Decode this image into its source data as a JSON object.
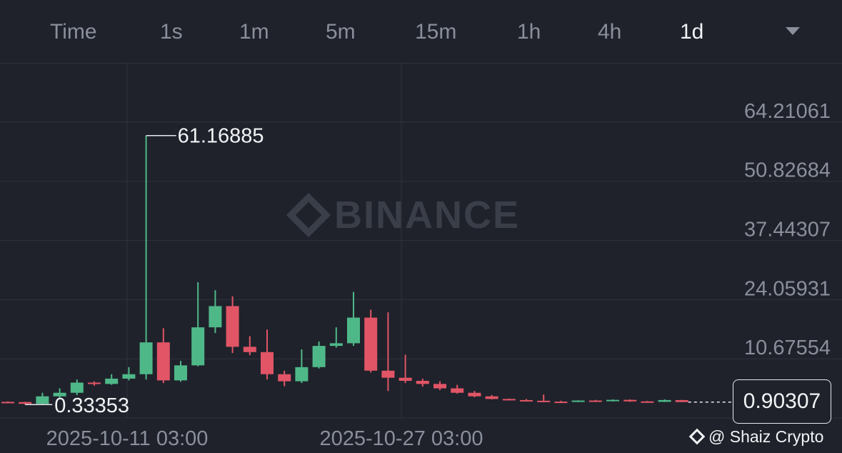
{
  "intervals": {
    "items": [
      {
        "label": "Time",
        "active": false
      },
      {
        "label": "1s",
        "active": false
      },
      {
        "label": "1m",
        "active": false
      },
      {
        "label": "5m",
        "active": false
      },
      {
        "label": "15m",
        "active": false
      },
      {
        "label": "1h",
        "active": false
      },
      {
        "label": "4h",
        "active": false
      },
      {
        "label": "1d",
        "active": true
      }
    ],
    "more_icon": "chevron-down-icon"
  },
  "watermark": "BINANCE",
  "current_price": "0.90307",
  "credit": "@ Shaiz Crypto",
  "colors": {
    "background": "#1f222b",
    "up": "#4fb889",
    "down": "#e15566",
    "grid": "#2e323c"
  },
  "chart_data": {
    "type": "candlestick",
    "y_ticks": [
      "64.21061",
      "50.82684",
      "37.44307",
      "24.05931",
      "10.67554"
    ],
    "x_ticks": [
      "2025-10-11 03:00",
      "2025-10-27 03:00"
    ],
    "ylim": [
      -2.7,
      77.6
    ],
    "max_label": "61.16885",
    "min_label": "0.33353",
    "candles": [
      {
        "o": 0.95,
        "h": 1.05,
        "l": 0.8,
        "c": 0.9
      },
      {
        "o": 0.9,
        "h": 0.95,
        "l": 0.33353,
        "c": 0.5
      },
      {
        "o": 0.5,
        "h": 3.0,
        "l": 0.4,
        "c": 2.2
      },
      {
        "o": 2.2,
        "h": 4.0,
        "l": 1.6,
        "c": 3.0
      },
      {
        "o": 3.0,
        "h": 6.0,
        "l": 2.5,
        "c": 5.3
      },
      {
        "o": 5.3,
        "h": 5.6,
        "l": 4.6,
        "c": 5.0
      },
      {
        "o": 5.0,
        "h": 7.2,
        "l": 4.8,
        "c": 6.2
      },
      {
        "o": 6.2,
        "h": 8.8,
        "l": 5.8,
        "c": 7.2
      },
      {
        "o": 7.2,
        "h": 61.16885,
        "l": 6.0,
        "c": 14.4
      },
      {
        "o": 14.4,
        "h": 17.6,
        "l": 5.2,
        "c": 5.8
      },
      {
        "o": 5.8,
        "h": 10.2,
        "l": 5.5,
        "c": 9.2
      },
      {
        "o": 9.2,
        "h": 28.0,
        "l": 9.0,
        "c": 17.8
      },
      {
        "o": 17.8,
        "h": 26.2,
        "l": 16.5,
        "c": 22.6
      },
      {
        "o": 22.6,
        "h": 24.8,
        "l": 12.0,
        "c": 13.4
      },
      {
        "o": 13.4,
        "h": 15.8,
        "l": 11.5,
        "c": 12.2
      },
      {
        "o": 12.2,
        "h": 17.3,
        "l": 6.0,
        "c": 7.2
      },
      {
        "o": 7.2,
        "h": 8.0,
        "l": 4.5,
        "c": 5.6
      },
      {
        "o": 5.6,
        "h": 12.8,
        "l": 5.2,
        "c": 8.8
      },
      {
        "o": 8.8,
        "h": 14.6,
        "l": 8.5,
        "c": 13.6
      },
      {
        "o": 13.6,
        "h": 17.8,
        "l": 13.2,
        "c": 14.2
      },
      {
        "o": 14.2,
        "h": 25.8,
        "l": 13.6,
        "c": 20.0
      },
      {
        "o": 20.0,
        "h": 21.8,
        "l": 7.6,
        "c": 8.0
      },
      {
        "o": 8.0,
        "h": 21.2,
        "l": 3.4,
        "c": 6.4
      },
      {
        "o": 6.4,
        "h": 11.6,
        "l": 5.2,
        "c": 5.7
      },
      {
        "o": 5.7,
        "h": 6.2,
        "l": 4.4,
        "c": 5.0
      },
      {
        "o": 5.0,
        "h": 5.6,
        "l": 3.6,
        "c": 4.0
      },
      {
        "o": 4.0,
        "h": 4.8,
        "l": 2.8,
        "c": 3.0
      },
      {
        "o": 3.0,
        "h": 3.4,
        "l": 2.0,
        "c": 2.2
      },
      {
        "o": 2.2,
        "h": 2.5,
        "l": 1.5,
        "c": 1.6
      },
      {
        "o": 1.6,
        "h": 1.7,
        "l": 1.3,
        "c": 1.35
      },
      {
        "o": 1.35,
        "h": 1.6,
        "l": 1.1,
        "c": 1.2
      },
      {
        "o": 1.2,
        "h": 2.6,
        "l": 0.9,
        "c": 1.0
      },
      {
        "o": 1.0,
        "h": 1.2,
        "l": 0.85,
        "c": 0.95
      },
      {
        "o": 0.95,
        "h": 1.3,
        "l": 0.9,
        "c": 1.25
      },
      {
        "o": 1.25,
        "h": 1.4,
        "l": 1.0,
        "c": 1.1
      },
      {
        "o": 1.1,
        "h": 1.5,
        "l": 1.05,
        "c": 1.4
      },
      {
        "o": 1.4,
        "h": 1.5,
        "l": 0.95,
        "c": 1.05
      },
      {
        "o": 1.05,
        "h": 1.15,
        "l": 0.9,
        "c": 0.95
      },
      {
        "o": 0.95,
        "h": 1.5,
        "l": 0.9,
        "c": 1.35
      },
      {
        "o": 1.35,
        "h": 1.4,
        "l": 0.88,
        "c": 0.90307
      }
    ],
    "grid": true
  }
}
